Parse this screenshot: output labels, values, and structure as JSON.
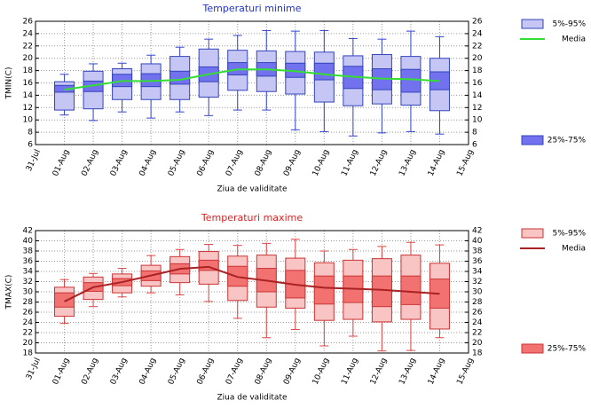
{
  "chart_data": [
    {
      "type": "box",
      "title": "Temperaturi minime",
      "title_color": "#2233cc",
      "xlabel": "Ziua de validitate",
      "ylabel": "TMIN(C)",
      "categories": [
        "31-Jul",
        "01-Aug",
        "02-Aug",
        "03-Aug",
        "04-Aug",
        "05-Aug",
        "06-Aug",
        "07-Aug",
        "08-Aug",
        "09-Aug",
        "10-Aug",
        "11-Aug",
        "12-Aug",
        "13-Aug",
        "14-Aug",
        "15-Aug"
      ],
      "ylim": [
        6,
        26
      ],
      "yticks": [
        6,
        8,
        10,
        12,
        14,
        16,
        18,
        20,
        22,
        24,
        26
      ],
      "grid": true,
      "legend": "right",
      "whisker_color": "#3344cc",
      "edge_color": "#3344bb",
      "whiskers": {
        "low": [
          null,
          10.8,
          9.9,
          11.3,
          10.3,
          11.3,
          10.7,
          11.6,
          11.6,
          8.4,
          8.1,
          7.4,
          7.9,
          8.1,
          7.7,
          null
        ],
        "high": [
          null,
          17.4,
          19.1,
          19.2,
          20.5,
          21.8,
          23.1,
          23.7,
          24.5,
          24.4,
          24.5,
          23.2,
          23.1,
          24.4,
          23.5,
          null
        ]
      },
      "series": [
        {
          "name": "5%-95%",
          "color": "#c6c6f4",
          "low": [
            null,
            11.6,
            11.8,
            13.3,
            13.3,
            13.3,
            13.7,
            14.8,
            14.6,
            14.2,
            12.9,
            12.3,
            12.6,
            12.4,
            11.5,
            null
          ],
          "high": [
            null,
            16.2,
            17.9,
            18.3,
            19.1,
            20.3,
            21.5,
            21.3,
            21.2,
            21.1,
            21.0,
            20.4,
            20.6,
            20.3,
            20.0,
            null
          ]
        },
        {
          "name": "Media",
          "color": "#33dd33",
          "values": [
            null,
            14.9,
            15.6,
            16.3,
            16.3,
            16.5,
            17.4,
            18.2,
            18.2,
            17.9,
            17.4,
            17.0,
            16.7,
            16.6,
            16.3,
            null
          ]
        },
        {
          "name": "25%-75%",
          "color": "#7272ee",
          "low": [
            null,
            14.5,
            14.6,
            15.4,
            15.4,
            15.8,
            16.2,
            17.3,
            17.1,
            16.9,
            16.5,
            15.1,
            14.9,
            14.5,
            14.9,
            null
          ],
          "high": [
            null,
            15.6,
            16.3,
            17.4,
            17.5,
            17.9,
            18.6,
            19.3,
            19.3,
            19.2,
            19.2,
            18.7,
            18.3,
            18.2,
            17.8,
            null
          ]
        }
      ]
    },
    {
      "type": "box",
      "title": "Temperaturi maxime",
      "title_color": "#dd2222",
      "xlabel": "Ziua de validitate",
      "ylabel": "TMAX(C)",
      "categories": [
        "31-Jul",
        "01-Aug",
        "02-Aug",
        "03-Aug",
        "04-Aug",
        "05-Aug",
        "06-Aug",
        "07-Aug",
        "08-Aug",
        "09-Aug",
        "10-Aug",
        "11-Aug",
        "12-Aug",
        "13-Aug",
        "14-Aug",
        "15-Aug"
      ],
      "ylim": [
        18,
        42
      ],
      "yticks": [
        18,
        20,
        22,
        24,
        26,
        28,
        30,
        32,
        34,
        36,
        38,
        40,
        42
      ],
      "grid": true,
      "legend": "right",
      "whisker_color": "#dd4444",
      "edge_color": "#cc3333",
      "whiskers": {
        "low": [
          null,
          23.8,
          27.1,
          29.0,
          29.8,
          29.4,
          28.1,
          24.8,
          21.0,
          22.6,
          19.4,
          21.3,
          18.4,
          18.5,
          21.0,
          null
        ],
        "high": [
          null,
          32.4,
          33.6,
          34.6,
          37.1,
          38.3,
          39.3,
          39.1,
          39.5,
          40.3,
          38.0,
          38.3,
          38.9,
          39.7,
          39.2,
          null
        ]
      },
      "series": [
        {
          "name": "5%-95%",
          "color": "#f8c4c4",
          "low": [
            null,
            25.2,
            28.5,
            29.8,
            31.1,
            31.8,
            31.5,
            28.3,
            27.0,
            26.8,
            24.4,
            24.6,
            24.1,
            24.6,
            22.7,
            null
          ],
          "high": [
            null,
            30.9,
            32.9,
            33.5,
            35.2,
            36.9,
            37.9,
            37.0,
            37.2,
            36.6,
            35.7,
            36.2,
            36.5,
            37.2,
            35.6,
            null
          ]
        },
        {
          "name": "Media",
          "color": "#aa2222",
          "values": [
            null,
            28.1,
            30.9,
            31.9,
            33.2,
            34.5,
            34.9,
            32.9,
            32.2,
            31.4,
            30.8,
            30.6,
            30.4,
            30.0,
            29.6,
            null
          ]
        },
        {
          "name": "25%-75%",
          "color": "#f27272",
          "low": [
            null,
            27.0,
            30.1,
            31.2,
            32.2,
            33.5,
            34.2,
            31.1,
            30.0,
            28.8,
            27.6,
            27.9,
            27.1,
            27.5,
            26.8,
            null
          ],
          "high": [
            null,
            29.8,
            31.8,
            32.6,
            34.1,
            35.5,
            36.2,
            35.0,
            34.6,
            34.2,
            33.1,
            33.1,
            33.1,
            33.1,
            32.5,
            null
          ]
        }
      ]
    }
  ]
}
